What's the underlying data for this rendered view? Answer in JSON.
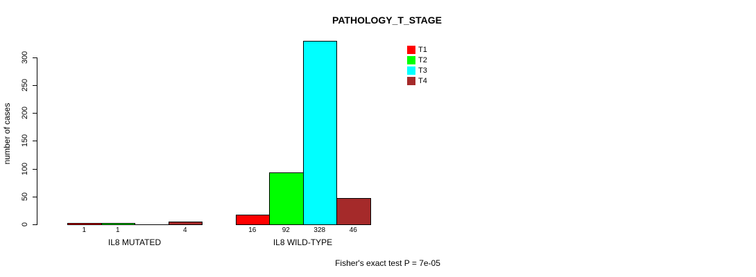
{
  "chart_data": {
    "type": "bar",
    "title": "PATHOLOGY_T_STAGE",
    "ylabel": "number of cases",
    "xlabel": "",
    "yticks": [
      0,
      50,
      100,
      150,
      200,
      250,
      300
    ],
    "ylim": [
      0,
      340
    ],
    "grid": false,
    "legend_position": "top-right",
    "categories": [
      "IL8 MUTATED",
      "IL8 WILD-TYPE"
    ],
    "series": [
      {
        "name": "T1",
        "color": "#FF0000",
        "values": [
          1,
          16
        ]
      },
      {
        "name": "T2",
        "color": "#00FF00",
        "values": [
          1,
          92
        ]
      },
      {
        "name": "T3",
        "color": "#00FFFF",
        "values": [
          0,
          328
        ]
      },
      {
        "name": "T4",
        "color": "#A52A2A",
        "values": [
          4,
          46
        ]
      }
    ],
    "bar_count_labels": [
      [
        "1",
        "1",
        "",
        "4"
      ],
      [
        "16",
        "92",
        "328",
        "46"
      ]
    ],
    "annotation": "Fisher's exact test P = 7e-05",
    "colors": {
      "axis": "#000000",
      "text": "#000000",
      "background": "#FFFFFF"
    }
  }
}
